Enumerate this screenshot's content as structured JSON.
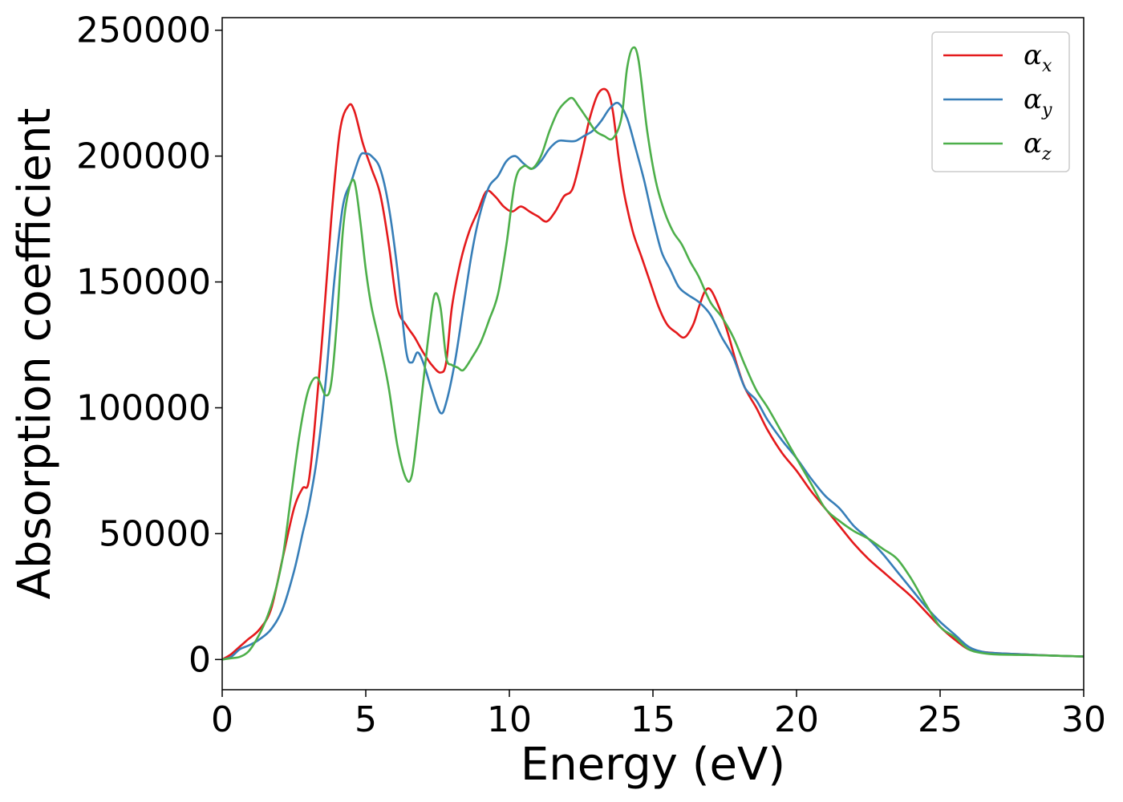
{
  "chart_data": {
    "type": "line",
    "title": "",
    "xlabel": "Energy (eV)",
    "ylabel": "Absorption coefficient",
    "xlim": [
      0,
      30
    ],
    "ylim": [
      -12000,
      255000
    ],
    "xticks": [
      0,
      5,
      10,
      15,
      20,
      25,
      30
    ],
    "xtick_labels": [
      "0",
      "5",
      "10",
      "15",
      "20",
      "25",
      "30"
    ],
    "yticks": [
      0,
      50000,
      100000,
      150000,
      200000,
      250000
    ],
    "ytick_labels": [
      "0",
      "50000",
      "100000",
      "150000",
      "200000",
      "250000"
    ],
    "grid": false,
    "legend_position": "top-right",
    "series": [
      {
        "name": "α",
        "subscript": "x",
        "color": "#e41a1c",
        "x": [
          0,
          0.3,
          0.6,
          0.9,
          1.3,
          1.7,
          2.1,
          2.5,
          2.8,
          3.0,
          3.2,
          3.5,
          3.8,
          4.1,
          4.4,
          4.6,
          4.9,
          5.2,
          5.5,
          5.8,
          6.1,
          6.4,
          6.7,
          7.0,
          7.3,
          7.6,
          7.8,
          8.0,
          8.3,
          8.6,
          8.9,
          9.2,
          9.5,
          9.8,
          10.1,
          10.4,
          10.7,
          11.0,
          11.3,
          11.6,
          11.9,
          12.2,
          12.5,
          12.8,
          13.1,
          13.4,
          13.6,
          13.8,
          14.0,
          14.3,
          14.6,
          14.9,
          15.2,
          15.5,
          15.8,
          16.1,
          16.4,
          16.6,
          16.8,
          17.0,
          17.3,
          17.6,
          17.9,
          18.2,
          18.6,
          19.0,
          19.5,
          20.0,
          20.5,
          21.0,
          21.5,
          22.0,
          22.5,
          23.0,
          23.5,
          24.0,
          24.5,
          25.0,
          25.5,
          26.0,
          26.5,
          27.0,
          28.0,
          29.0,
          30.0
        ],
        "y": [
          0,
          2000,
          5000,
          8000,
          12000,
          20000,
          40000,
          60000,
          68000,
          70000,
          90000,
          130000,
          175000,
          210000,
          220000,
          218000,
          205000,
          195000,
          185000,
          165000,
          140000,
          133000,
          128000,
          122000,
          117000,
          114000,
          118000,
          140000,
          158000,
          170000,
          178000,
          186000,
          184000,
          180000,
          178000,
          180000,
          178000,
          176000,
          174000,
          178000,
          184000,
          187000,
          200000,
          215000,
          225000,
          226000,
          218000,
          200000,
          185000,
          170000,
          160000,
          150000,
          140000,
          133000,
          130000,
          128000,
          133000,
          140000,
          146000,
          147000,
          140000,
          130000,
          118000,
          108000,
          100000,
          91000,
          82000,
          75000,
          67000,
          60000,
          53000,
          46000,
          40000,
          35000,
          30000,
          25000,
          19000,
          13000,
          8000,
          4000,
          3000,
          2500,
          2000,
          1500,
          1200
        ]
      },
      {
        "name": "α",
        "subscript": "y",
        "color": "#377eb8",
        "x": [
          0,
          0.3,
          0.6,
          0.8,
          1.0,
          1.3,
          1.7,
          2.1,
          2.5,
          2.8,
          3.0,
          3.3,
          3.6,
          3.9,
          4.2,
          4.5,
          4.8,
          5.0,
          5.2,
          5.5,
          5.8,
          6.1,
          6.4,
          6.6,
          6.8,
          7.0,
          7.3,
          7.6,
          7.8,
          8.1,
          8.4,
          8.7,
          9.0,
          9.3,
          9.6,
          9.9,
          10.2,
          10.5,
          10.8,
          11.1,
          11.4,
          11.7,
          12.0,
          12.3,
          12.6,
          12.9,
          13.2,
          13.5,
          13.8,
          14.1,
          14.4,
          14.7,
          15.0,
          15.3,
          15.6,
          15.9,
          16.2,
          16.6,
          17.0,
          17.4,
          17.8,
          18.2,
          18.6,
          19.0,
          19.5,
          20.0,
          20.5,
          21.0,
          21.5,
          22.0,
          22.5,
          23.0,
          23.5,
          24.0,
          24.5,
          25.0,
          25.5,
          26.0,
          26.5,
          27.0,
          28.0,
          29.0,
          30.0
        ],
        "y": [
          0,
          1000,
          4000,
          5000,
          6000,
          8000,
          12000,
          20000,
          35000,
          50000,
          60000,
          80000,
          110000,
          150000,
          180000,
          190000,
          200000,
          201000,
          200000,
          195000,
          180000,
          155000,
          123000,
          118000,
          122000,
          118000,
          107000,
          98000,
          102000,
          118000,
          140000,
          162000,
          178000,
          188000,
          192000,
          198000,
          200000,
          197000,
          195000,
          198000,
          203000,
          206000,
          206000,
          206000,
          208000,
          210000,
          214000,
          219000,
          221000,
          215000,
          203000,
          190000,
          175000,
          162000,
          155000,
          148000,
          145000,
          142000,
          137000,
          128000,
          120000,
          108000,
          103000,
          95000,
          87000,
          80000,
          72000,
          65000,
          60000,
          53000,
          48000,
          42000,
          35000,
          28000,
          21000,
          15000,
          10000,
          5000,
          3000,
          2500,
          2000,
          1500,
          1200
        ]
      },
      {
        "name": "α",
        "subscript": "z",
        "color": "#4daf4a",
        "x": [
          0,
          0.3,
          0.6,
          0.9,
          1.2,
          1.5,
          1.8,
          2.1,
          2.4,
          2.7,
          3.0,
          3.3,
          3.6,
          3.8,
          4.0,
          4.2,
          4.4,
          4.6,
          4.8,
          5.0,
          5.2,
          5.5,
          5.8,
          6.1,
          6.4,
          6.6,
          6.8,
          7.0,
          7.2,
          7.4,
          7.6,
          7.8,
          8.0,
          8.2,
          8.4,
          8.7,
          9.0,
          9.3,
          9.6,
          9.9,
          10.2,
          10.5,
          10.8,
          11.1,
          11.4,
          11.7,
          12.0,
          12.2,
          12.4,
          12.7,
          13.0,
          13.3,
          13.6,
          13.9,
          14.1,
          14.3,
          14.5,
          14.8,
          15.1,
          15.4,
          15.7,
          16.0,
          16.3,
          16.6,
          17.0,
          17.4,
          17.8,
          18.2,
          18.6,
          19.0,
          19.5,
          20.0,
          20.5,
          21.0,
          21.5,
          22.0,
          22.5,
          23.0,
          23.5,
          24.0,
          24.5,
          25.0,
          25.5,
          26.0,
          26.5,
          27.0,
          28.0,
          29.0,
          30.0
        ],
        "y": [
          0,
          500,
          1000,
          3000,
          8000,
          15000,
          25000,
          40000,
          65000,
          90000,
          107000,
          112000,
          105000,
          110000,
          135000,
          170000,
          186000,
          190000,
          175000,
          155000,
          140000,
          125000,
          108000,
          85000,
          72000,
          73000,
          90000,
          110000,
          130000,
          145000,
          140000,
          120000,
          117000,
          116000,
          115000,
          120000,
          126000,
          135000,
          145000,
          165000,
          190000,
          196000,
          195000,
          200000,
          210000,
          218000,
          222000,
          223000,
          220000,
          215000,
          210000,
          208000,
          207000,
          215000,
          235000,
          243000,
          238000,
          210000,
          190000,
          178000,
          170000,
          165000,
          158000,
          152000,
          142000,
          136000,
          128000,
          117000,
          107000,
          100000,
          90000,
          80000,
          70000,
          60000,
          55000,
          51000,
          48000,
          44000,
          40000,
          32000,
          22000,
          13000,
          9000,
          4000,
          2500,
          2000,
          1800,
          1500,
          1200
        ]
      }
    ]
  }
}
